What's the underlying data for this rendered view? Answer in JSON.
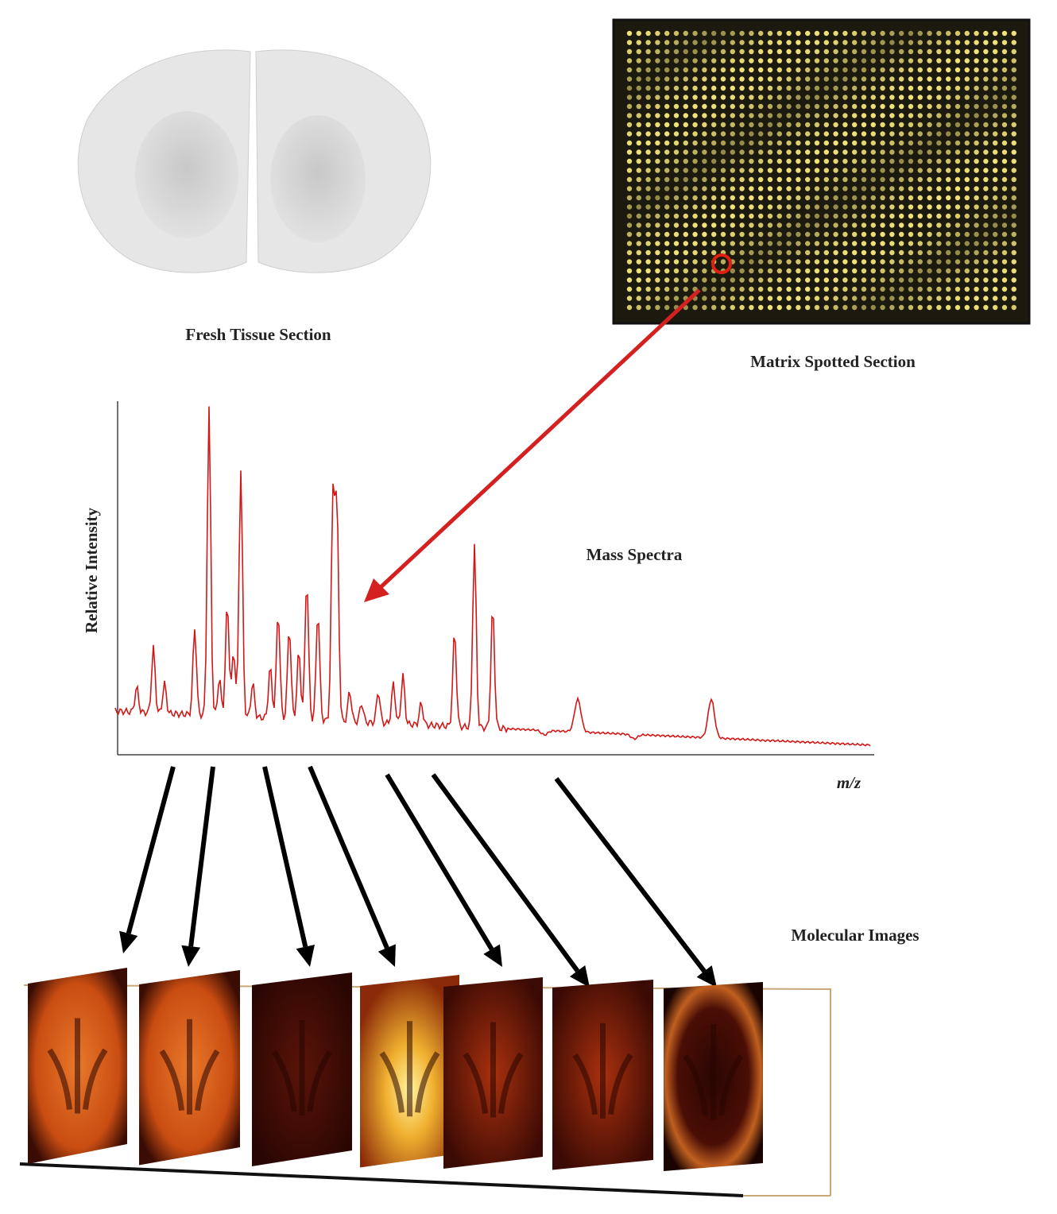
{
  "tissue": {
    "label": "Fresh Tissue Section"
  },
  "matrix": {
    "label": "Matrix Spotted Section"
  },
  "spectrum": {
    "title": "Mass Spectra",
    "y_label": "Relative Intensity",
    "x_label": "m/z"
  },
  "images": {
    "label": "Molecular Images"
  }
}
